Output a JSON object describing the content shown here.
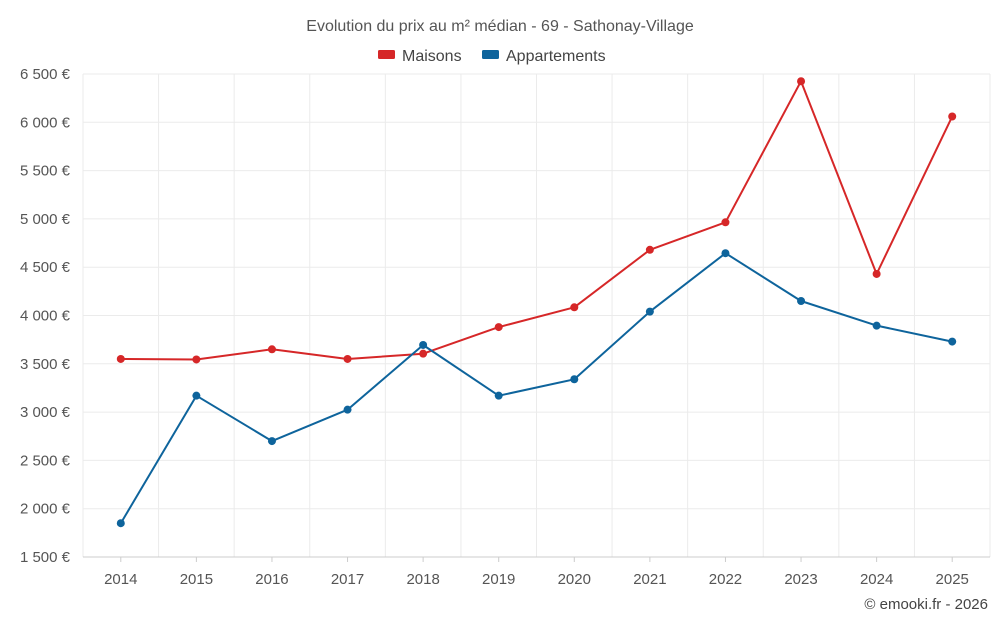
{
  "chart_data": {
    "type": "line",
    "title": "Evolution du prix au m² médian - 69 - Sathonay-Village",
    "x": [
      "2014",
      "2015",
      "2016",
      "2017",
      "2018",
      "2019",
      "2020",
      "2021",
      "2022",
      "2023",
      "2024",
      "2025"
    ],
    "series": [
      {
        "name": "Maisons",
        "color": "#d62728",
        "values": [
          3550,
          3545,
          3650,
          3550,
          3605,
          3880,
          4085,
          4680,
          4965,
          6425,
          4430,
          6060
        ]
      },
      {
        "name": "Appartements",
        "color": "#0e649c",
        "values": [
          1850,
          3170,
          2700,
          3025,
          3695,
          3170,
          3340,
          4040,
          4645,
          4150,
          3895,
          3730
        ]
      }
    ],
    "y_ticks": [
      "1 500 €",
      "2 000 €",
      "2 500 €",
      "3 000 €",
      "3 500 €",
      "4 000 €",
      "4 500 €",
      "5 000 €",
      "5 500 €",
      "6 000 €",
      "6 500 €"
    ],
    "y_tick_values": [
      1500,
      2000,
      2500,
      3000,
      3500,
      4000,
      4500,
      5000,
      5500,
      6000,
      6500
    ],
    "ylim": [
      1500,
      6500
    ],
    "grid": true,
    "legend_position": "top-center"
  },
  "credit": "© emooki.fr - 2026"
}
